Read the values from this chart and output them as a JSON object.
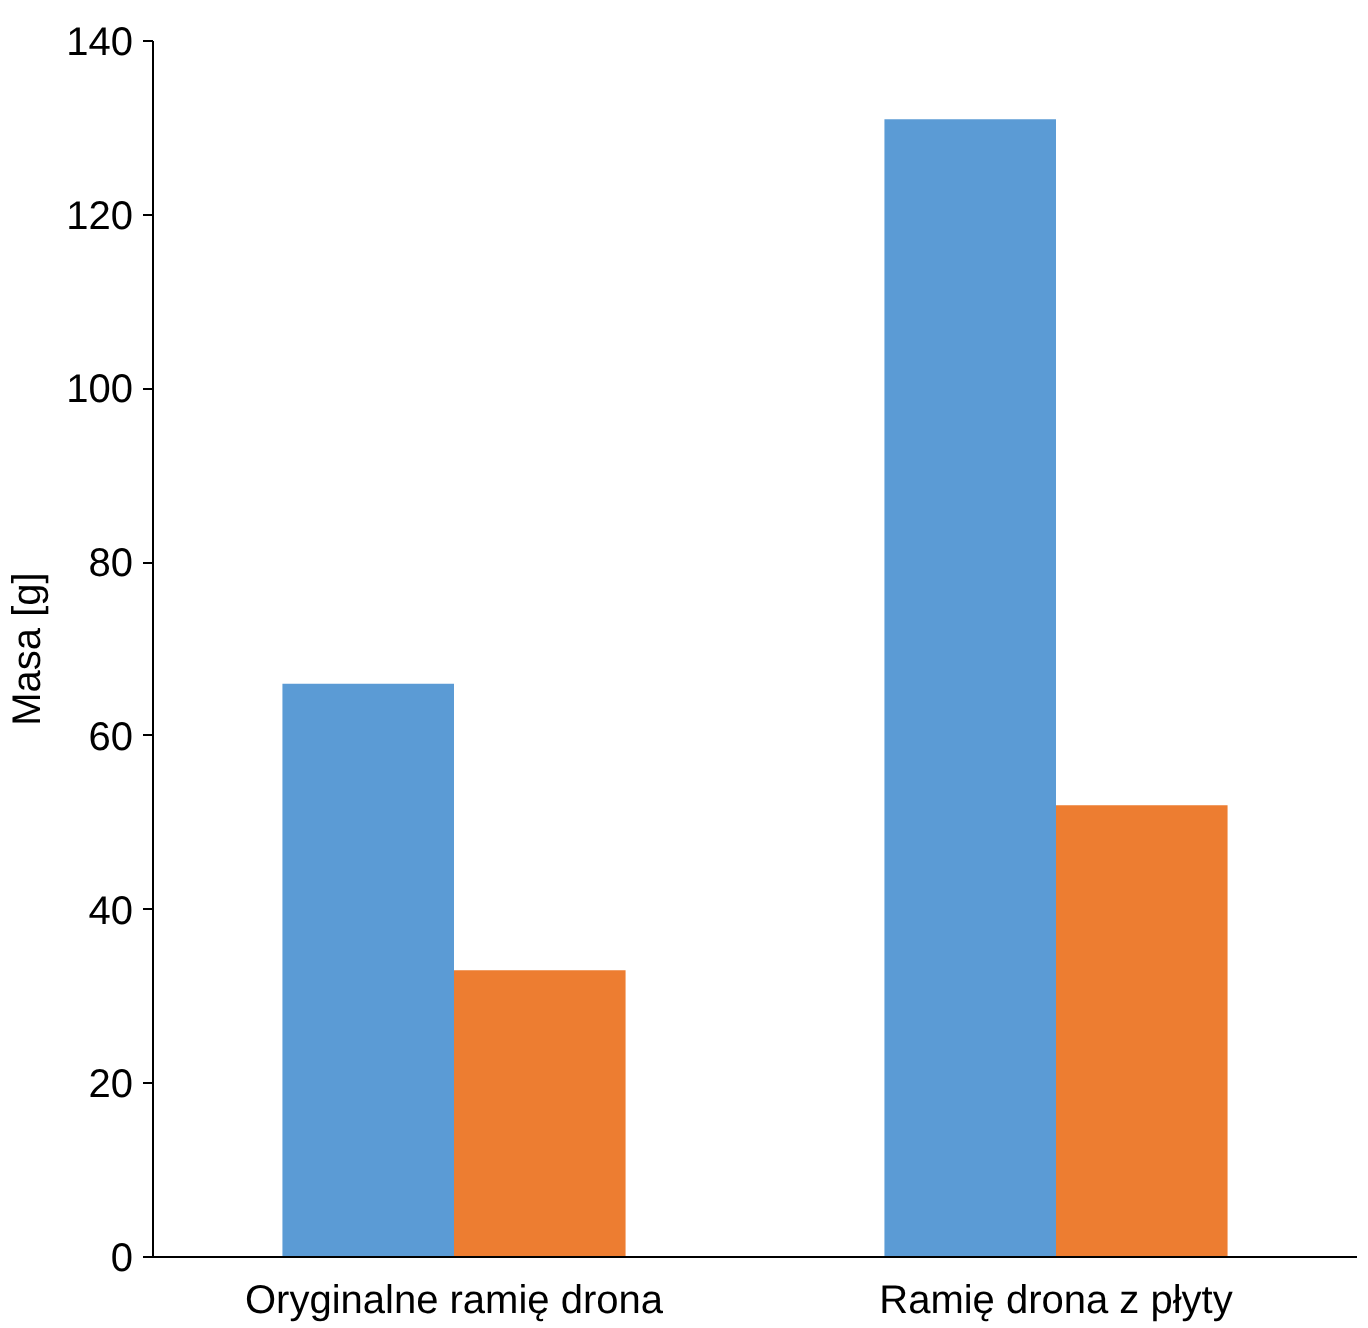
{
  "chart_data": {
    "type": "bar",
    "ylabel": "Masa [g]",
    "categories": [
      "Oryginalne ramię drona",
      "Ramię drona z płyty"
    ],
    "series": [
      {
        "color": "#5b9bd5",
        "values": [
          66,
          131
        ]
      },
      {
        "color": "#ed7d31",
        "values": [
          33,
          52
        ]
      }
    ],
    "ylim": [
      0,
      140
    ],
    "yticks": [
      0,
      20,
      40,
      60,
      80,
      100,
      120,
      140
    ],
    "grid": false
  }
}
